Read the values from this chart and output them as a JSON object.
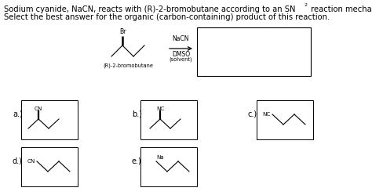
{
  "bg_color": "#ffffff",
  "text_color": "#000000",
  "font_size_title": 7.2,
  "font_size_small": 5.5,
  "font_size_label": 7.0,
  "font_size_tiny": 4.8,
  "title_line1": "Sodium cyanide, NaCN, reacts with (R)-2-bromobutane according to an SN",
  "title_sub": "2",
  "title_end": " reaction mechanism.",
  "title_line2": "Select the best answer for the organic (carbon-containing) product of this reaction.",
  "reactant_label": "(R)-2-bromobutane",
  "nacn_label": "NaCN",
  "dmso_label": "DMSO",
  "solvent_label": "(solvent)",
  "answers": [
    "a.)",
    "b.)",
    "c.)",
    "d.)",
    "e.)"
  ],
  "answer_groups": [
    "CN",
    "NC",
    "NC",
    "CN",
    "Na"
  ]
}
